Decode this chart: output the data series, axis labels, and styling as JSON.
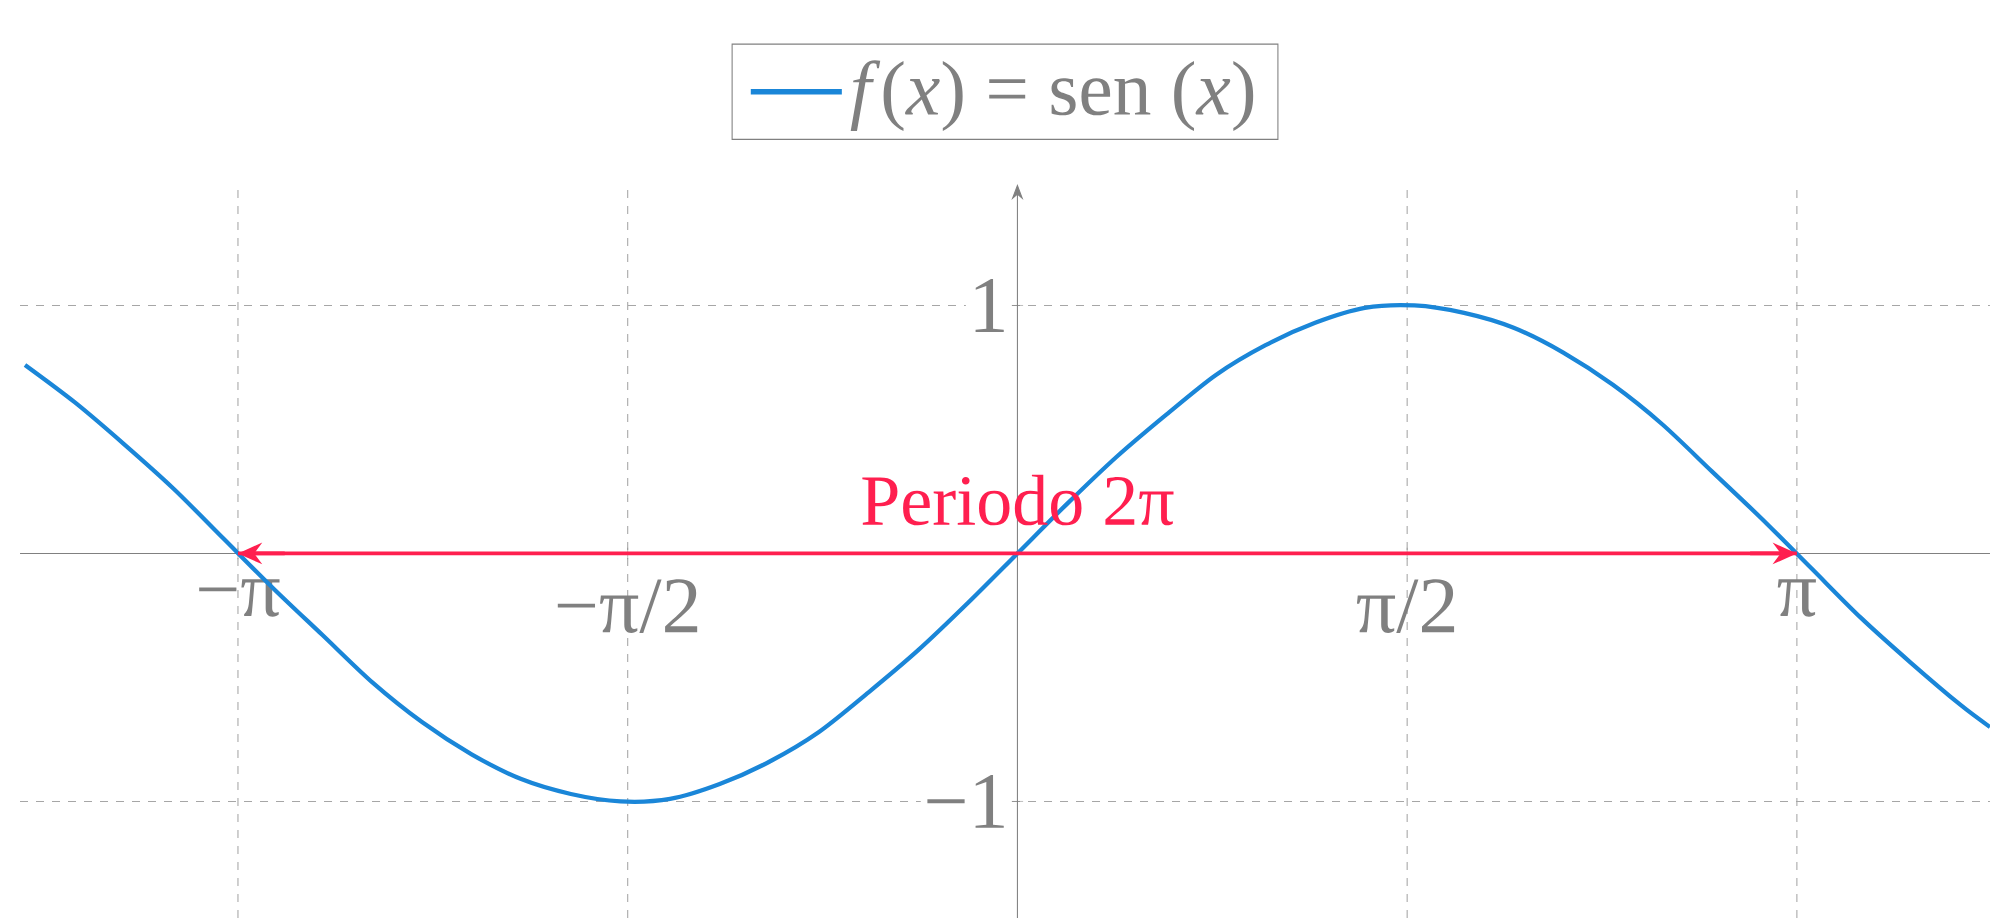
{
  "chart_data": {
    "type": "line",
    "x": [
      -4.0,
      -3.8,
      -3.6,
      -3.4,
      -3.2,
      -3.0,
      -2.8,
      -2.6,
      -2.4,
      -2.2,
      -2.0,
      -1.8,
      -1.6,
      -1.4,
      -1.2,
      -1.0,
      -0.8,
      -0.6,
      -0.4,
      -0.2,
      0.0,
      0.2,
      0.4,
      0.6,
      0.8,
      1.0,
      1.2,
      1.4,
      1.6,
      1.8,
      2.0,
      2.2,
      2.4,
      2.6,
      2.8,
      3.0,
      3.2,
      3.4,
      3.6,
      3.8,
      3.92
    ],
    "series": [
      {
        "name": "*f*(*x*) = sen (*x*)",
        "color": "#1a86d8",
        "values": [
          0.76,
          0.61,
          0.44,
          0.26,
          0.06,
          -0.14,
          -0.33,
          -0.52,
          -0.68,
          -0.81,
          -0.91,
          -0.97,
          -1.0,
          -0.99,
          -0.93,
          -0.84,
          -0.72,
          -0.56,
          -0.39,
          -0.2,
          0.0,
          0.2,
          0.39,
          0.56,
          0.72,
          0.84,
          0.93,
          0.99,
          1.0,
          0.97,
          0.91,
          0.81,
          0.68,
          0.52,
          0.33,
          0.14,
          -0.06,
          -0.26,
          -0.44,
          -0.61,
          -0.7
        ]
      },
      {
        "type": "line",
        "color": "#ff1f4f",
        "x": [
          -3.1416,
          3.1416
        ],
        "values": [
          0,
          0
        ]
      }
    ],
    "xlim": [
      -4.02,
      3.92
    ],
    "ylim": [
      -1.47,
      1.49
    ],
    "xticks": [
      {
        "value": -3.1416,
        "label": "−π"
      },
      {
        "value": -1.5708,
        "label": "−π/2"
      },
      {
        "value": 1.5708,
        "label": "π/2"
      },
      {
        "value": 3.1416,
        "label": "π"
      }
    ],
    "yticks": [
      {
        "value": -1,
        "label": "−1"
      },
      1
    ],
    "grid": true,
    "legend": "top",
    "annotations": [
      {
        "text": "Periodo 2π",
        "x": 0,
        "y": 0
      }
    ]
  }
}
